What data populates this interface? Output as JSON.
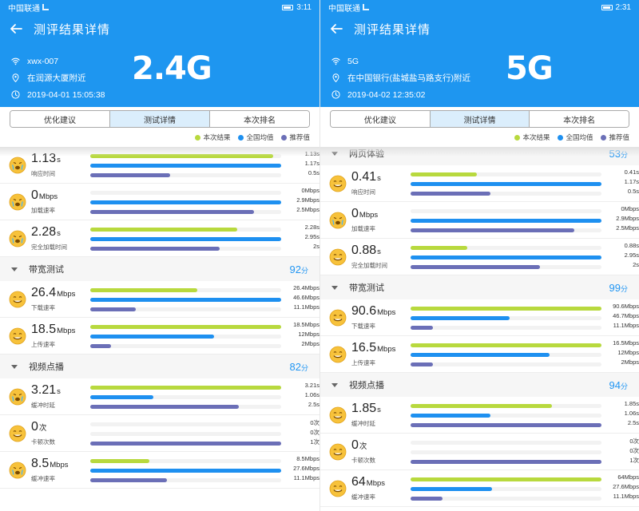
{
  "colors": {
    "primary": "#1e96f0",
    "current": "#b8d93e",
    "average": "#1e90f0",
    "recommended": "#6b6fb7",
    "score": "#2196f3"
  },
  "screens": [
    {
      "statusbar": {
        "left": "中国联通",
        "time": "3:11"
      },
      "appbar": {
        "title": "测评结果详情"
      },
      "header": {
        "ssid": "xwx-007",
        "location": "在润源大厦附近",
        "datetime": "2019-04-01 15:05:38",
        "band": "2.4G"
      },
      "tabs": [
        {
          "label": "优化建议"
        },
        {
          "label": "测试详情"
        },
        {
          "label": "本次排名"
        }
      ],
      "legend": [
        "本次结果",
        "全国均值",
        "推荐值"
      ],
      "sections": [
        {
          "name": "",
          "score": "",
          "score_unit": "",
          "metrics": [
            {
              "value": "1.13",
              "unit": "s",
              "label": "响应时间",
              "face": "sad",
              "bars": [
                {
                  "text": "1.13s",
                  "fraction": 0.96
                },
                {
                  "text": "1.17s",
                  "fraction": 1.0
                },
                {
                  "text": "0.5s",
                  "fraction": 0.42
                }
              ]
            },
            {
              "value": "0",
              "unit": "Mbps",
              "label": "加载速率",
              "face": "sad",
              "bars": [
                {
                  "text": "0Mbps",
                  "fraction": 0.0
                },
                {
                  "text": "2.9Mbps",
                  "fraction": 1.0
                },
                {
                  "text": "2.5Mbps",
                  "fraction": 0.86
                }
              ]
            },
            {
              "value": "2.28",
              "unit": "s",
              "label": "完全加载时间",
              "face": "sad",
              "bars": [
                {
                  "text": "2.28s",
                  "fraction": 0.77
                },
                {
                  "text": "2.95s",
                  "fraction": 1.0
                },
                {
                  "text": "2s",
                  "fraction": 0.68
                }
              ]
            }
          ]
        },
        {
          "name": "带宽测试",
          "score": "92",
          "score_unit": "分",
          "metrics": [
            {
              "value": "26.4",
              "unit": "Mbps",
              "label": "下载速率",
              "face": "happy",
              "bars": [
                {
                  "text": "26.4Mbps",
                  "fraction": 0.56
                },
                {
                  "text": "46.6Mbps",
                  "fraction": 1.0
                },
                {
                  "text": "11.1Mbps",
                  "fraction": 0.24
                }
              ]
            },
            {
              "value": "18.5",
              "unit": "Mbps",
              "label": "上传速率",
              "face": "happy",
              "bars": [
                {
                  "text": "18.5Mbps",
                  "fraction": 1.0
                },
                {
                  "text": "12Mbps",
                  "fraction": 0.65
                },
                {
                  "text": "2Mbps",
                  "fraction": 0.11
                }
              ]
            }
          ]
        },
        {
          "name": "视频点播",
          "score": "82",
          "score_unit": "分",
          "metrics": [
            {
              "value": "3.21",
              "unit": "s",
              "label": "缓冲时延",
              "face": "sad",
              "bars": [
                {
                  "text": "3.21s",
                  "fraction": 1.0
                },
                {
                  "text": "1.06s",
                  "fraction": 0.33
                },
                {
                  "text": "2.5s",
                  "fraction": 0.78
                }
              ]
            },
            {
              "value": "0",
              "unit": "次",
              "label": "卡顿次数",
              "face": "happy",
              "bars": [
                {
                  "text": "0次",
                  "fraction": 0.0
                },
                {
                  "text": "0次",
                  "fraction": 0.0
                },
                {
                  "text": "1次",
                  "fraction": 1.0
                }
              ]
            },
            {
              "value": "8.5",
              "unit": "Mbps",
              "label": "缓冲速率",
              "face": "sad",
              "bars": [
                {
                  "text": "8.5Mbps",
                  "fraction": 0.31
                },
                {
                  "text": "27.6Mbps",
                  "fraction": 1.0
                },
                {
                  "text": "11.1Mbps",
                  "fraction": 0.4
                }
              ]
            }
          ]
        }
      ]
    },
    {
      "statusbar": {
        "left": "中国联通",
        "time": "2:31"
      },
      "appbar": {
        "title": "测评结果详情"
      },
      "header": {
        "ssid": "5G",
        "location": "在中国银行(盐城盐马路支行)附近",
        "datetime": "2019-04-02 12:35:02",
        "band": "5G"
      },
      "tabs": [
        {
          "label": "优化建议"
        },
        {
          "label": "测试详情"
        },
        {
          "label": "本次排名"
        }
      ],
      "legend": [
        "本次结果",
        "全国均值",
        "推荐值"
      ],
      "sections": [
        {
          "name": "网页体验",
          "score": "53",
          "score_unit": "分",
          "metrics": [
            {
              "value": "0.41",
              "unit": "s",
              "label": "响应时间",
              "face": "happy",
              "bars": [
                {
                  "text": "0.41s",
                  "fraction": 0.35
                },
                {
                  "text": "1.17s",
                  "fraction": 1.0
                },
                {
                  "text": "0.5s",
                  "fraction": 0.42
                }
              ]
            },
            {
              "value": "0",
              "unit": "Mbps",
              "label": "加载速率",
              "face": "sad",
              "bars": [
                {
                  "text": "0Mbps",
                  "fraction": 0.0
                },
                {
                  "text": "2.9Mbps",
                  "fraction": 1.0
                },
                {
                  "text": "2.5Mbps",
                  "fraction": 0.86
                }
              ]
            },
            {
              "value": "0.88",
              "unit": "s",
              "label": "完全加载时间",
              "face": "happy",
              "bars": [
                {
                  "text": "0.88s",
                  "fraction": 0.3
                },
                {
                  "text": "2.95s",
                  "fraction": 1.0
                },
                {
                  "text": "2s",
                  "fraction": 0.68
                }
              ]
            }
          ]
        },
        {
          "name": "带宽测试",
          "score": "99",
          "score_unit": "分",
          "metrics": [
            {
              "value": "90.6",
              "unit": "Mbps",
              "label": "下载速率",
              "face": "happy",
              "bars": [
                {
                  "text": "90.6Mbps",
                  "fraction": 1.0
                },
                {
                  "text": "46.7Mbps",
                  "fraction": 0.52
                },
                {
                  "text": "11.1Mbps",
                  "fraction": 0.12
                }
              ]
            },
            {
              "value": "16.5",
              "unit": "Mbps",
              "label": "上传速率",
              "face": "happy",
              "bars": [
                {
                  "text": "16.5Mbps",
                  "fraction": 1.0
                },
                {
                  "text": "12Mbps",
                  "fraction": 0.73
                },
                {
                  "text": "2Mbps",
                  "fraction": 0.12
                }
              ]
            }
          ]
        },
        {
          "name": "视频点播",
          "score": "94",
          "score_unit": "分",
          "metrics": [
            {
              "value": "1.85",
              "unit": "s",
              "label": "缓冲时延",
              "face": "happy",
              "bars": [
                {
                  "text": "1.85s",
                  "fraction": 0.74
                },
                {
                  "text": "1.06s",
                  "fraction": 0.42
                },
                {
                  "text": "2.5s",
                  "fraction": 1.0
                }
              ]
            },
            {
              "value": "0",
              "unit": "次",
              "label": "卡顿次数",
              "face": "happy",
              "bars": [
                {
                  "text": "0次",
                  "fraction": 0.0
                },
                {
                  "text": "0次",
                  "fraction": 0.0
                },
                {
                  "text": "1次",
                  "fraction": 1.0
                }
              ]
            },
            {
              "value": "64",
              "unit": "Mbps",
              "label": "缓冲速率",
              "face": "happy",
              "bars": [
                {
                  "text": "64Mbps",
                  "fraction": 1.0
                },
                {
                  "text": "27.6Mbps",
                  "fraction": 0.43
                },
                {
                  "text": "11.1Mbps",
                  "fraction": 0.17
                }
              ]
            }
          ]
        }
      ]
    }
  ]
}
